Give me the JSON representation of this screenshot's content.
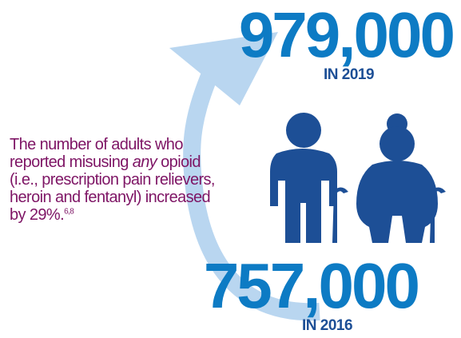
{
  "stats": {
    "value_2019": "979,000",
    "label_2019": "IN 2019",
    "value_2016": "757,000",
    "label_2016": "IN 2016"
  },
  "caption": {
    "line1": "The number of adults who",
    "line2_before": "reported misusing ",
    "line2_emph": "any",
    "line2_after": " opioid",
    "line3": "(i.e., prescription pain relievers,",
    "line4": "heroin and fentanyl) increased",
    "line5": "by 29%.",
    "footnote_refs": "6,8"
  },
  "icons": [
    "curved-arrow-icon",
    "older-man-with-cane-icon",
    "older-woman-with-cane-icon"
  ],
  "colors": {
    "number_blue": "#0d7bc4",
    "dark_blue": "#1d4f96",
    "arrow_light_blue": "#b9d6f0",
    "caption_purple": "#7e1565"
  }
}
